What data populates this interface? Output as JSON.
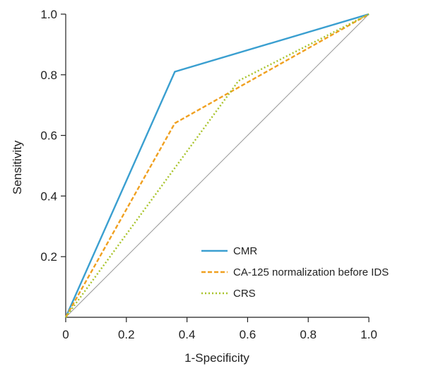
{
  "chart_data": {
    "type": "line",
    "title": "",
    "xlabel": "1-Specificity",
    "ylabel": "Sensitivity",
    "xlim": [
      0,
      1
    ],
    "ylim": [
      0,
      1
    ],
    "xticks": [
      "0",
      "0.2",
      "0.4",
      "0.6",
      "0.8",
      "1.0"
    ],
    "yticks": [
      "0.2",
      "0.4",
      "0.6",
      "0.8",
      "1.0"
    ],
    "grid": false,
    "legend_position": "bottom-right",
    "reference_line": {
      "x": [
        0,
        1
      ],
      "y": [
        0,
        1
      ],
      "color": "#999999"
    },
    "series": [
      {
        "name": "CMR",
        "x": [
          0,
          0.36,
          1.0
        ],
        "y": [
          0,
          0.81,
          1.0
        ],
        "color": "#3a9fd0",
        "dash": "solid"
      },
      {
        "name": "CA-125 normalization before IDS",
        "x": [
          0,
          0.36,
          1.0
        ],
        "y": [
          0,
          0.64,
          1.0
        ],
        "color": "#f0a020",
        "dash": "dashed"
      },
      {
        "name": "CRS",
        "x": [
          0,
          0.57,
          1.0
        ],
        "y": [
          0,
          0.78,
          1.0
        ],
        "color": "#a8c32a",
        "dash": "dotted"
      }
    ]
  }
}
